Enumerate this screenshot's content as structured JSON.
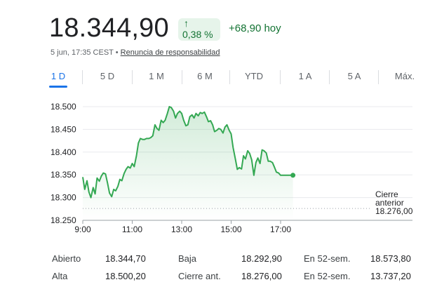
{
  "quote": {
    "price": "18.344,90",
    "change_arrow": "↑",
    "change_percent": "0,38 %",
    "change_abs": "+68,90 hoy",
    "timestamp": "5 jun, 17:35 CEST",
    "separator": " • ",
    "disclaimer": "Renuncia de responsabilidad"
  },
  "tabs": [
    {
      "label": "1 D",
      "active": true
    },
    {
      "label": "5 D"
    },
    {
      "label": "1 M"
    },
    {
      "label": "6 M"
    },
    {
      "label": "YTD"
    },
    {
      "label": "1 A"
    },
    {
      "label": "5 A"
    },
    {
      "label": "Máx."
    }
  ],
  "colors": {
    "line": "#34a853",
    "accent": "#1a73e8",
    "positive": "#137333"
  },
  "chart_data": {
    "type": "area",
    "title": "",
    "xlabel": "",
    "ylabel": "",
    "y_ticks": [
      {
        "value": 18500,
        "label": "18.500"
      },
      {
        "value": 18450,
        "label": "18.450"
      },
      {
        "value": 18400,
        "label": "18.400"
      },
      {
        "value": 18350,
        "label": "18.350"
      },
      {
        "value": 18300,
        "label": "18.300"
      },
      {
        "value": 18250,
        "label": "18.250"
      }
    ],
    "x_ticks": [
      {
        "value": 9,
        "label": "9:00"
      },
      {
        "value": 11,
        "label": "11:00"
      },
      {
        "value": 13,
        "label": "13:00"
      },
      {
        "value": 15,
        "label": "15:00"
      },
      {
        "value": 17,
        "label": "17:00"
      }
    ],
    "xlim": [
      9,
      18
    ],
    "ylim": [
      18250,
      18510
    ],
    "grid": true,
    "previous_close": {
      "value": 18276.0,
      "label_line1": "Cierre",
      "label_line2": "anterior",
      "label_value": "18.276,00"
    },
    "series": [
      {
        "x": [
          9.0,
          9.08,
          9.17,
          9.25,
          9.33,
          9.42,
          9.5,
          9.58,
          9.67,
          9.75,
          9.83,
          9.92,
          10.0,
          10.08,
          10.17,
          10.25,
          10.33,
          10.42,
          10.5,
          10.58,
          10.67,
          10.75,
          10.83,
          10.92,
          11.0,
          11.08,
          11.17,
          11.25,
          11.33,
          11.42,
          11.5,
          11.58,
          11.67,
          11.75,
          11.83,
          11.92,
          12.0,
          12.08,
          12.17,
          12.25,
          12.33,
          12.42,
          12.5,
          12.58,
          12.67,
          12.75,
          12.83,
          12.92,
          13.0,
          13.08,
          13.17,
          13.25,
          13.33,
          13.42,
          13.5,
          13.58,
          13.67,
          13.75,
          13.83,
          13.92,
          14.0,
          14.08,
          14.17,
          14.25,
          14.33,
          14.42,
          14.5,
          14.58,
          14.67,
          14.75,
          14.83,
          14.92,
          15.0,
          15.08,
          15.17,
          15.25,
          15.33,
          15.42,
          15.5,
          15.58,
          15.67,
          15.75,
          15.83,
          15.92,
          16.0,
          16.08,
          16.17,
          16.25,
          16.33,
          16.42,
          16.5,
          16.58,
          16.67,
          16.75,
          16.83,
          16.92,
          17.0,
          17.08,
          17.17,
          17.25,
          17.33,
          17.42,
          17.5
        ],
        "values": [
          18345,
          18318,
          18337,
          18312,
          18300,
          18322,
          18308,
          18343,
          18336,
          18347,
          18354,
          18352,
          18332,
          18310,
          18302,
          18318,
          18315,
          18325,
          18340,
          18337,
          18353,
          18362,
          18368,
          18365,
          18375,
          18368,
          18392,
          18420,
          18430,
          18428,
          18428,
          18430,
          18430,
          18432,
          18436,
          18460,
          18452,
          18448,
          18470,
          18465,
          18470,
          18485,
          18500,
          18498,
          18490,
          18475,
          18485,
          18490,
          18485,
          18470,
          18458,
          18460,
          18478,
          18482,
          18475,
          18485,
          18480,
          18487,
          18485,
          18488,
          18478,
          18467,
          18469,
          18460,
          18445,
          18448,
          18452,
          18450,
          18442,
          18455,
          18460,
          18448,
          18440,
          18410,
          18385,
          18362,
          18366,
          18363,
          18392,
          18385,
          18403,
          18397,
          18383,
          18349,
          18377,
          18387,
          18375,
          18405,
          18403,
          18398,
          18380,
          18380,
          18377,
          18367,
          18356,
          18354,
          18349,
          18349,
          18349,
          18349,
          18349,
          18349,
          18349
        ]
      }
    ]
  },
  "stats": [
    {
      "label": "Abierto",
      "value": "18.344,70"
    },
    {
      "label": "Baja",
      "value": "18.292,90"
    },
    {
      "label": "En 52-sem.",
      "value": "18.573,80"
    },
    {
      "label": "Alta",
      "value": "18.500,20"
    },
    {
      "label": "Cierre ant.",
      "value": "18.276,00"
    },
    {
      "label": "En 52-sem.",
      "value": "13.737,20"
    }
  ]
}
